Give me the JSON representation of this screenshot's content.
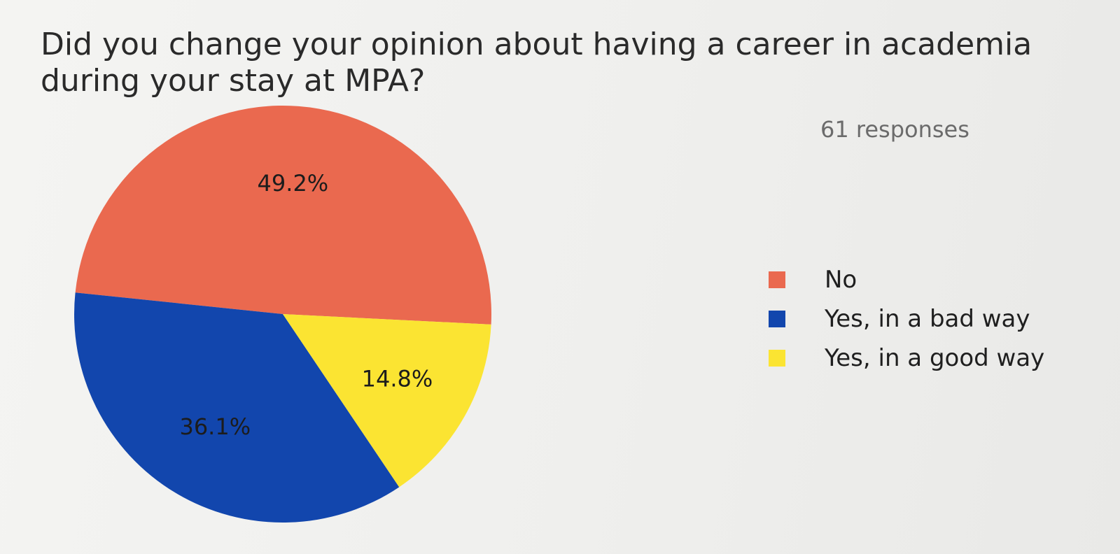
{
  "chart_data": {
    "type": "pie",
    "title": "Did you change your opinion about having a career in academia during your stay at MPA?",
    "subtitle": "61 responses",
    "legend_position": "right",
    "slices": [
      {
        "name": "No",
        "value": 49.2,
        "label": "49.2%",
        "color": "#ea694f"
      },
      {
        "name": "Yes, in a bad way",
        "value": 36.1,
        "label": "36.1%",
        "color": "#1246ad"
      },
      {
        "name": "Yes, in a good way",
        "value": 14.8,
        "label": "14.8%",
        "color": "#fbe432"
      }
    ]
  }
}
